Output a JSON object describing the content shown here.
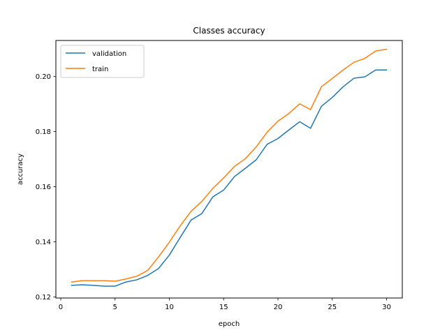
{
  "chart_data": {
    "type": "line",
    "title": "Classes accuracy",
    "xlabel": "epoch",
    "ylabel": "accuracy",
    "xlim": [
      -0.45,
      31.45
    ],
    "ylim": [
      0.1196,
      0.2131
    ],
    "xticks": [
      0,
      5,
      10,
      15,
      20,
      25,
      30
    ],
    "yticks": [
      0.12,
      0.14,
      0.16,
      0.18,
      0.2
    ],
    "ytick_labels": [
      "0.12",
      "0.14",
      "0.16",
      "0.18",
      "0.20"
    ],
    "grid": false,
    "legend_position": "top-left",
    "x": [
      1,
      2,
      3,
      4,
      5,
      6,
      7,
      8,
      9,
      10,
      11,
      12,
      13,
      14,
      15,
      16,
      17,
      18,
      19,
      20,
      21,
      22,
      23,
      24,
      25,
      26,
      27,
      28,
      29,
      30
    ],
    "series": [
      {
        "name": "validation",
        "color": "#1f77b4",
        "values": [
          0.1242,
          0.1244,
          0.1242,
          0.1239,
          0.1239,
          0.1254,
          0.1262,
          0.1278,
          0.1303,
          0.1352,
          0.1416,
          0.1479,
          0.1503,
          0.1563,
          0.1588,
          0.1637,
          0.1667,
          0.1698,
          0.1754,
          0.1775,
          0.1806,
          0.1836,
          0.1812,
          0.1892,
          0.1924,
          0.1963,
          0.1994,
          0.1999,
          0.2024,
          0.2024
        ]
      },
      {
        "name": "train",
        "color": "#ff7f0e",
        "values": [
          0.1254,
          0.1259,
          0.1259,
          0.1259,
          0.1257,
          0.1265,
          0.1275,
          0.1296,
          0.1345,
          0.1399,
          0.1458,
          0.1511,
          0.1547,
          0.1594,
          0.1632,
          0.1674,
          0.1702,
          0.1745,
          0.1798,
          0.1838,
          0.1866,
          0.1901,
          0.188,
          0.1963,
          0.1993,
          0.2024,
          0.2052,
          0.2066,
          0.2093,
          0.2099
        ]
      }
    ]
  }
}
